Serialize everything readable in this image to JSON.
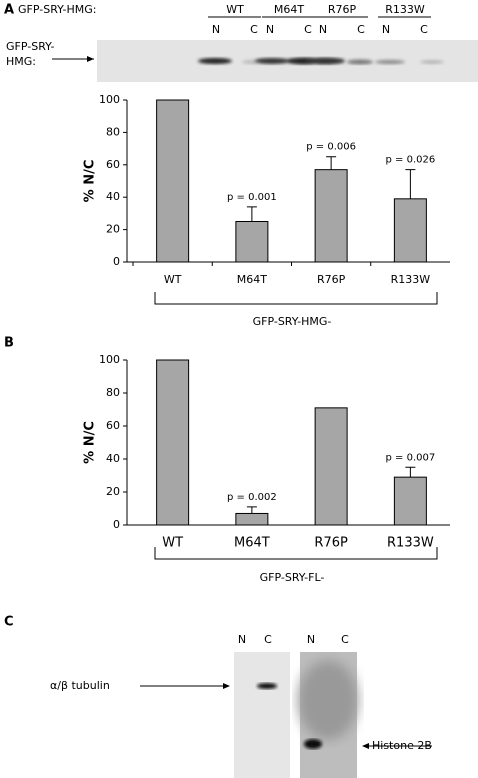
{
  "panels": {
    "a": "A",
    "b": "B",
    "c": "C"
  },
  "blot_a": {
    "row_label": "GFP-SRY-HMG:",
    "groups": [
      "WT",
      "M64T",
      "R76P",
      "R133W"
    ],
    "lanes": [
      "N",
      "C"
    ],
    "band_label": [
      "GFP-SRY-",
      "HMG:"
    ]
  },
  "blot_c": {
    "lanes": [
      "N",
      "C"
    ],
    "labels": [
      "α/β tubulin",
      "Histone 2B"
    ]
  },
  "chart_data": [
    {
      "type": "bar",
      "y_label": "% N/C",
      "categories": [
        "WT",
        "M64T",
        "R76P",
        "R133W"
      ],
      "values": [
        100,
        25,
        57,
        39
      ],
      "errors": [
        null,
        9,
        8,
        18
      ],
      "annotations": [
        null,
        "p = 0.001",
        "p = 0.006",
        "p = 0.026"
      ],
      "color": "#a6a6a6",
      "ylim": [
        0,
        100
      ],
      "yticks": [
        0,
        20,
        40,
        60,
        80,
        100
      ],
      "group_label": "GFP-SRY-HMG-"
    },
    {
      "type": "bar",
      "y_label": "% N/C",
      "categories": [
        "WT",
        "M64T",
        "R76P",
        "R133W"
      ],
      "values": [
        100,
        7,
        71,
        29
      ],
      "errors": [
        null,
        4,
        null,
        6
      ],
      "annotations": [
        null,
        "p = 0.002",
        null,
        "p = 0.007"
      ],
      "color": "#a6a6a6",
      "ylim": [
        0,
        100
      ],
      "yticks": [
        0,
        20,
        40,
        60,
        80,
        100
      ],
      "group_label": "GFP-SRY-FL-"
    }
  ]
}
